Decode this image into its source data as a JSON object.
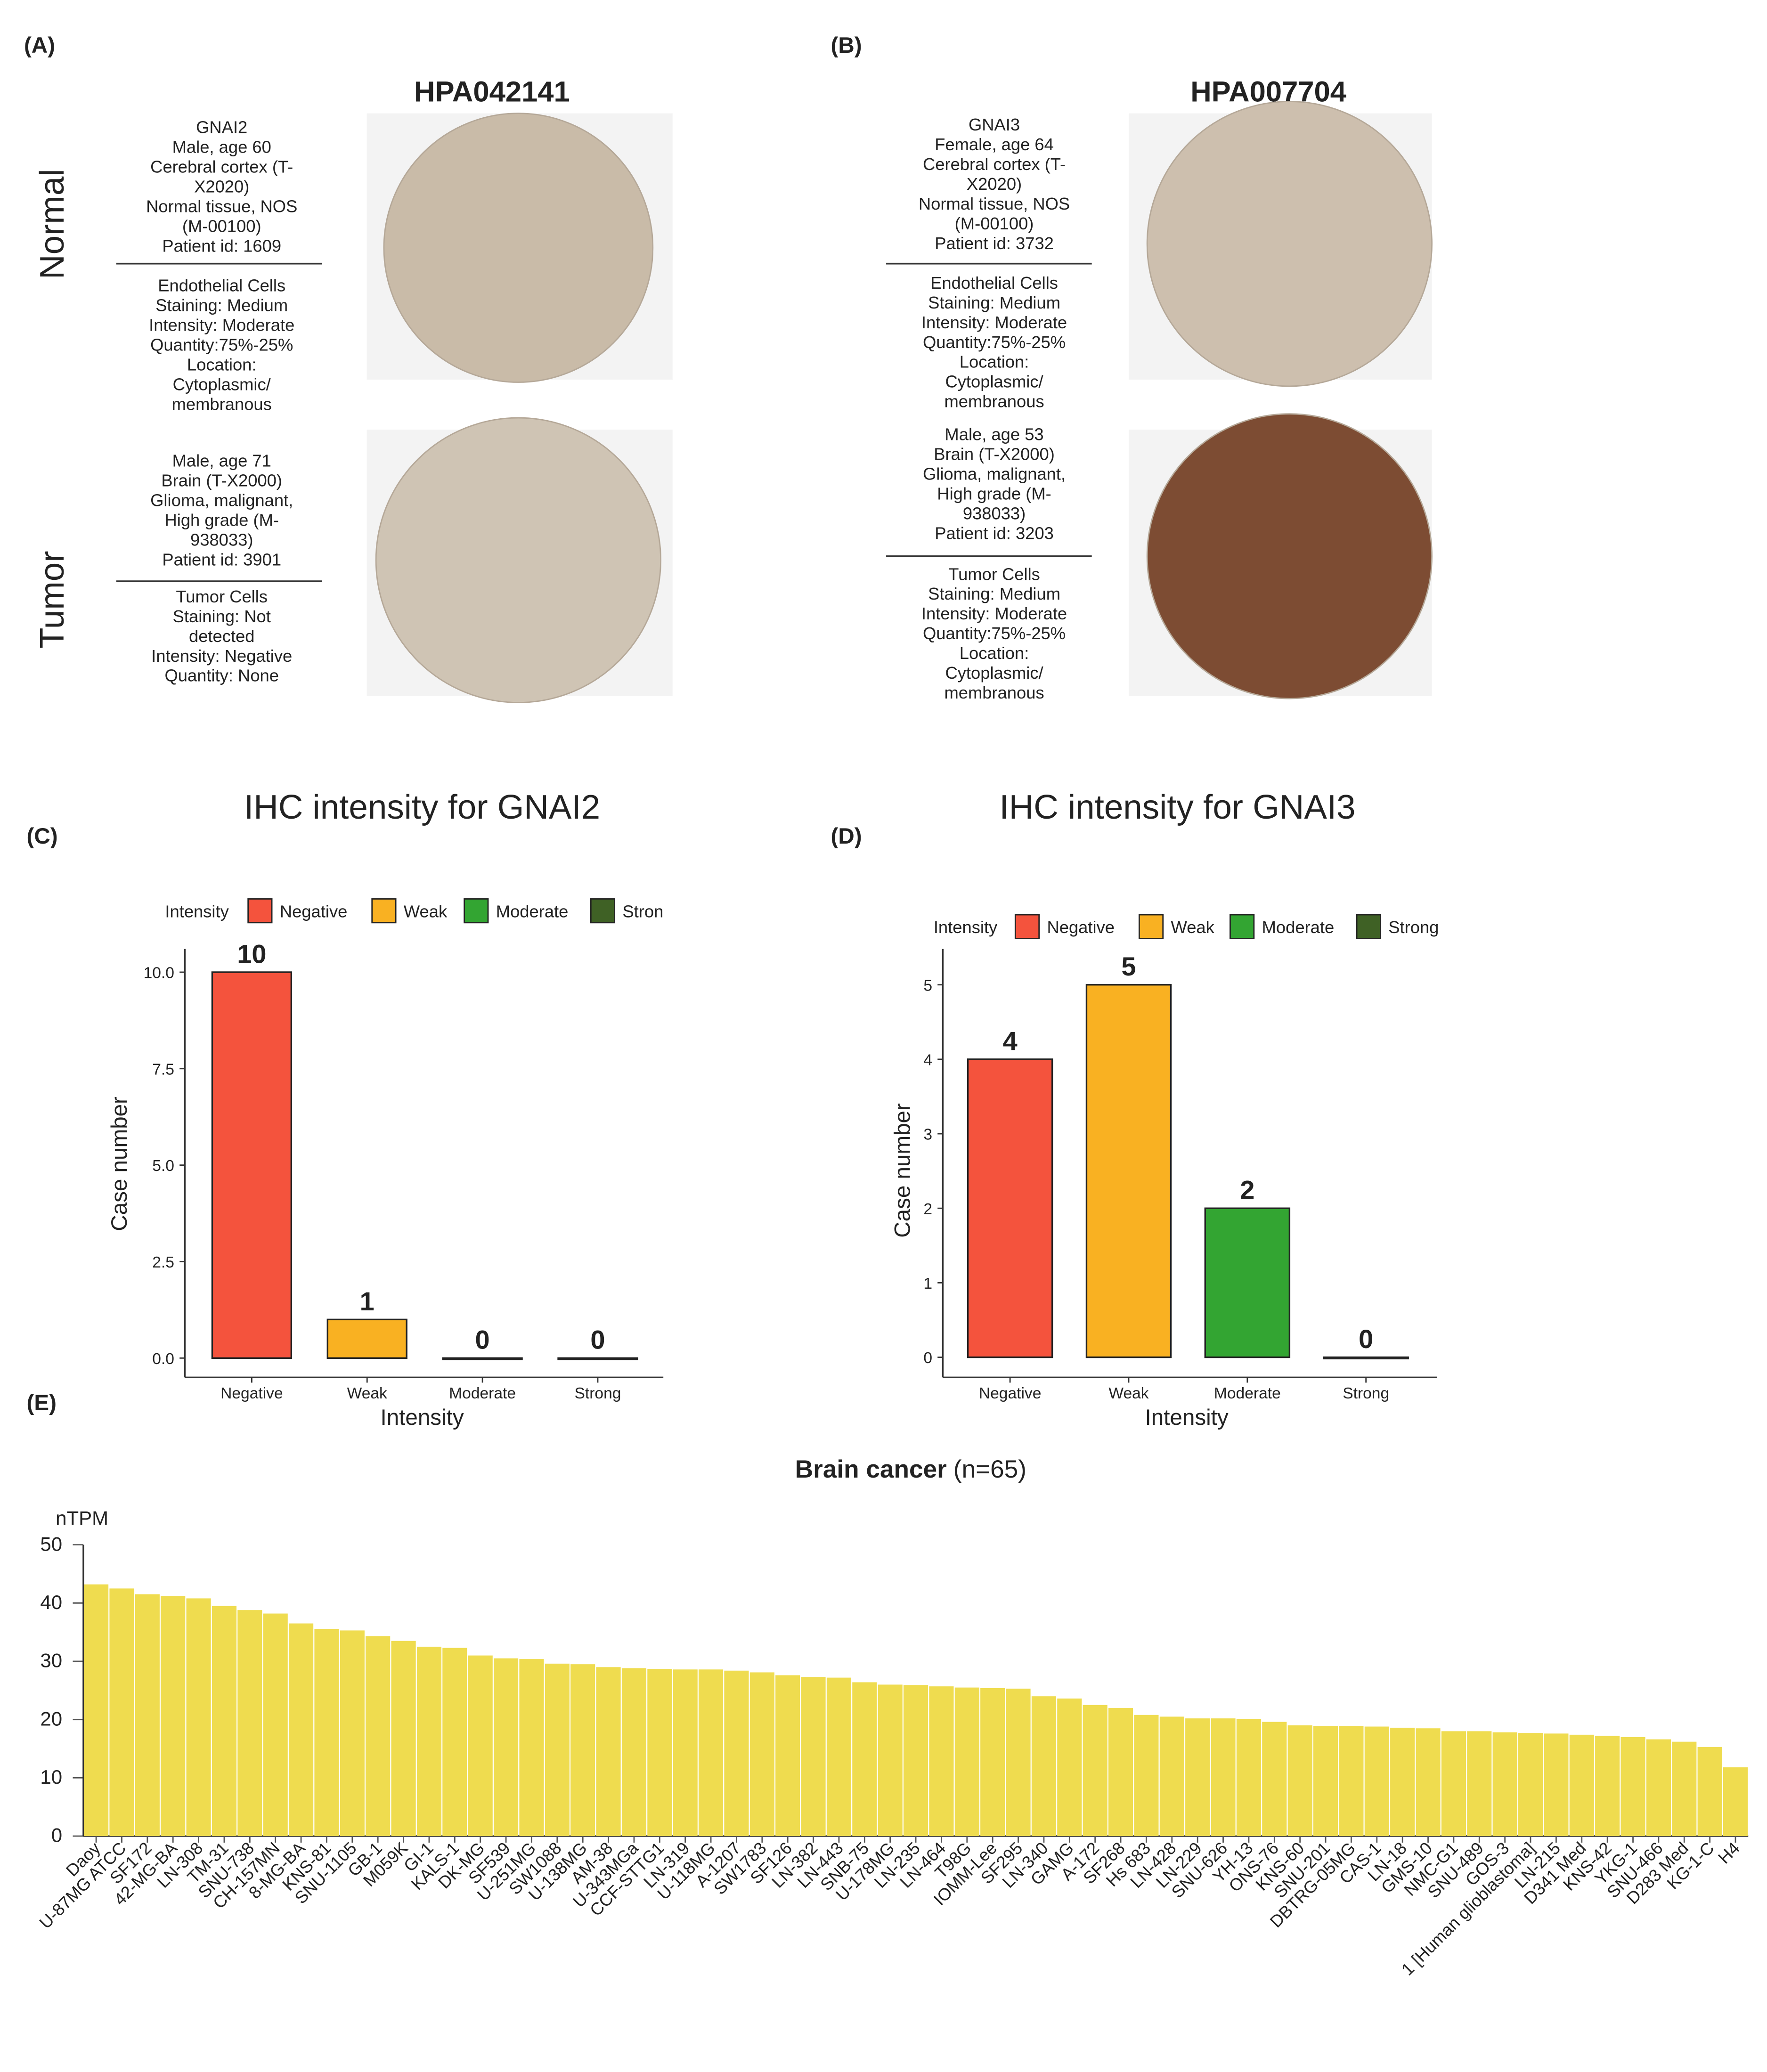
{
  "tissue_panels": [
    {
      "label": "(A)",
      "antibody": "HPA042141",
      "normal": {
        "patient": [
          "GNAI2",
          "Male, age 60",
          "Cerebral cortex (T-",
          "X2020)",
          "Normal tissue, NOS",
          "(M-00100)",
          "Patient id: 1609"
        ],
        "cells": [
          "Endothelial Cells",
          "Staining: Medium",
          "Intensity: Moderate",
          "Quantity:75%-25%",
          "Location:",
          "Cytoplasmic/",
          "membranous"
        ]
      },
      "tumor": {
        "patient": [
          "Male, age 71",
          "Brain (T-X2000)",
          "Glioma, malignant,",
          "High grade (M-",
          "938033)",
          "Patient id: 3901"
        ],
        "cells": [
          "Tumor Cells",
          "Staining: Not",
          "detected",
          "Intensity: Negative",
          "Quantity: None"
        ]
      }
    },
    {
      "label": "(B)",
      "antibody": "HPA007704",
      "normal": {
        "patient": [
          "GNAI3",
          "Female, age 64",
          "Cerebral cortex (T-",
          "X2020)",
          "Normal tissue, NOS",
          "(M-00100)",
          "Patient id: 3732"
        ],
        "cells": [
          "Endothelial Cells",
          "Staining: Medium",
          "Intensity: Moderate",
          "Quantity:75%-25%",
          "Location:",
          "Cytoplasmic/",
          "membranous"
        ]
      },
      "tumor": {
        "patient": [
          "Male, age 53",
          "Brain (T-X2000)",
          "Glioma, malignant,",
          "High grade (M-",
          "938033)",
          "Patient id: 3203"
        ],
        "cells": [
          "Tumor Cells",
          "Staining: Medium",
          "Intensity: Moderate",
          "Quantity:75%-25%",
          "Location:",
          "Cytoplasmic/",
          "membranous"
        ]
      }
    }
  ],
  "row_labels": [
    "Normal",
    "Tumor"
  ],
  "chart_data": [
    {
      "type": "bar",
      "panel_label": "(C)",
      "title": "IHC intensity for GNAI2",
      "x_label": "Intensity",
      "y_label": "Case number",
      "categories": [
        "Negative",
        "Weak",
        "Moderate",
        "Strong"
      ],
      "values": [
        10,
        1,
        0,
        0
      ],
      "colors": [
        "#f4533d",
        "#f9b122",
        "#33a532",
        "#3f6125"
      ],
      "legend": {
        "title": "Intensity",
        "labels": [
          "Negative",
          "Weak",
          "Moderate",
          "Stron"
        ]
      },
      "ylim": [
        -0.5,
        10.6
      ],
      "yticks": [
        {
          "value": 0,
          "label": "0.0"
        },
        2.5,
        {
          "value": 5,
          "label": "5.0"
        },
        7.5,
        {
          "value": 10,
          "label": "10.0"
        }
      ]
    },
    {
      "type": "bar",
      "panel_label": "(D)",
      "title": "IHC intensity for GNAI3",
      "x_label": "Intensity",
      "y_label": "Case number",
      "categories": [
        "Negative",
        "Weak",
        "Moderate",
        "Strong"
      ],
      "values": [
        4,
        5,
        2,
        0
      ],
      "colors": [
        "#f4533d",
        "#f9b122",
        "#33a532",
        "#3f6125"
      ],
      "legend": {
        "title": "Intensity",
        "labels": [
          "Negative",
          "Weak",
          "Moderate",
          "Strong"
        ]
      },
      "ylim": [
        -0.27,
        5.48
      ],
      "yticks": [
        0,
        1,
        2,
        3,
        4,
        5
      ]
    },
    {
      "type": "bar",
      "panel_label": "(E)",
      "title": "Brain cancer",
      "subtitle": "(n=65)",
      "y_label": "nTPM",
      "color": "#efdc4f",
      "categories": [
        "Daoy",
        "U-87MG ATCC",
        "SF172",
        "42-MG-BA",
        "LN-308",
        "TM-31",
        "SNU-738",
        "CH-157MN",
        "8-MG-BA",
        "KNS-81",
        "SNU-1105",
        "GB-1",
        "M059K",
        "GI-1",
        "KALS-1",
        "DK-MG",
        "SF539",
        "U-251MG",
        "SW1088",
        "U-138MG",
        "AM-38",
        "U-343MGa",
        "CCF-STTG1",
        "LN-319",
        "U-118MG",
        "A-1207",
        "SW1783",
        "SF126",
        "LN-382",
        "LN-443",
        "SNB-75",
        "U-178MG",
        "LN-235",
        "LN-464",
        "T98G",
        "IOMM-Lee",
        "SF295",
        "LN-340",
        "GAMG",
        "A-172",
        "SF268",
        "Hs 683",
        "LN-428",
        "LN-229",
        "SNU-626",
        "YH-13",
        "ONS-76",
        "KNS-60",
        "SNU-201",
        "DBTRG-05MG",
        "CAS-1",
        "LN-18",
        "GMS-10",
        "NMC-G1",
        "SNU-489",
        "GOS-3",
        "1 [Human glioblastoma]",
        "LN-215",
        "D341 Med",
        "KNS-42",
        "YKG-1",
        "SNU-466",
        "D283 Med",
        "KG-1-C",
        "H4"
      ],
      "values": [
        43.2,
        42.5,
        41.5,
        41.2,
        40.8,
        39.5,
        38.8,
        38.2,
        36.5,
        35.5,
        35.3,
        34.3,
        33.5,
        32.5,
        32.3,
        31,
        30.5,
        30.4,
        29.6,
        29.5,
        29,
        28.8,
        28.7,
        28.6,
        28.6,
        28.4,
        28.1,
        27.6,
        27.3,
        27.2,
        26.4,
        26,
        25.9,
        25.7,
        25.5,
        25.4,
        25.3,
        24,
        23.6,
        22.5,
        22,
        20.8,
        20.5,
        20.2,
        20.2,
        20.1,
        19.6,
        19,
        18.9,
        18.9,
        18.8,
        18.6,
        18.5,
        18,
        18,
        17.8,
        17.7,
        17.6,
        17.4,
        17.2,
        17,
        16.6,
        16.2,
        15.3,
        11.8
      ],
      "ylim": [
        0,
        50
      ],
      "yticks": [
        0,
        10,
        20,
        30,
        40,
        50
      ]
    }
  ]
}
